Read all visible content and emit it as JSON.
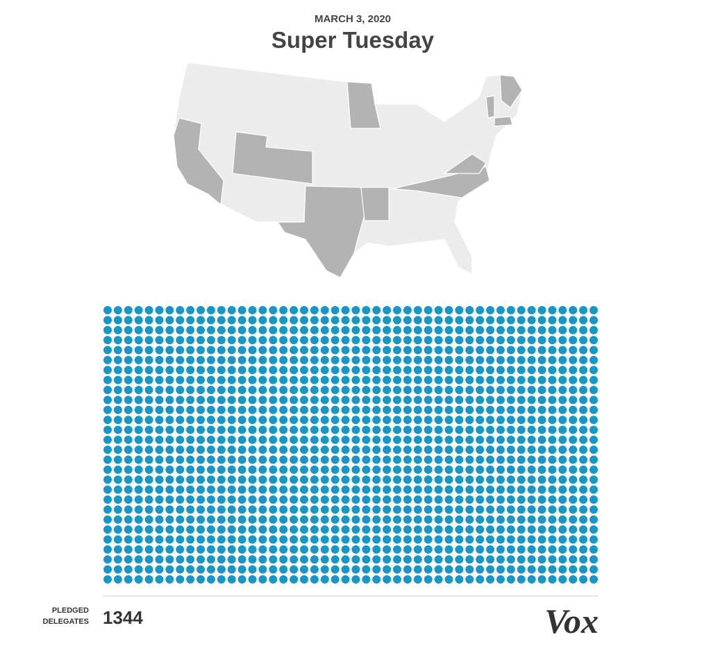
{
  "chart_data": {
    "type": "dot_grid",
    "subtitle": "MARCH 3, 2020",
    "title": "Super Tuesday",
    "value": 1344,
    "label_lines": [
      "PLEDGED",
      "DELEGATES"
    ],
    "color": "#1996c8",
    "brand": "Vox"
  }
}
